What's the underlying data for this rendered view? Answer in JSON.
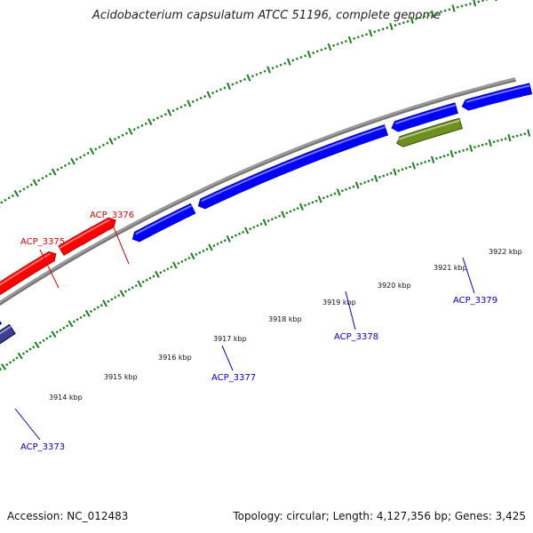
{
  "title": "Acidobacterium capsulatum ATCC 51196, complete genome",
  "footer": {
    "accession": "Accession: NC_012483",
    "stats": "Topology: circular; Length: 4,127,356 bp; Genes: 3,425"
  },
  "colors": {
    "forward_gene": "#ff0000",
    "reverse_gene": "#0000ff",
    "rna_gene": "#6f8f1f",
    "pseudo_gene": "#3f3f8f",
    "backbone": "#808080",
    "tick": "#1a7f1a",
    "label_forward": "#e00000",
    "label_reverse": "#0000cc"
  },
  "scale_labels": [
    "3914 kbp",
    "3915 kbp",
    "3916 kbp",
    "3917 kbp",
    "3918 kbp",
    "3919 kbp",
    "3920 kbp",
    "3921 kbp",
    "3922 kbp"
  ],
  "gene_labels": [
    {
      "text": "ACP_3375",
      "strand": "forward"
    },
    {
      "text": "ACP_3376",
      "strand": "forward"
    },
    {
      "text": "ACP_3373",
      "strand": "reverse"
    },
    {
      "text": "ACP_3377",
      "strand": "reverse"
    },
    {
      "text": "ACP_3378",
      "strand": "reverse"
    },
    {
      "text": "ACP_3379",
      "strand": "reverse"
    }
  ]
}
